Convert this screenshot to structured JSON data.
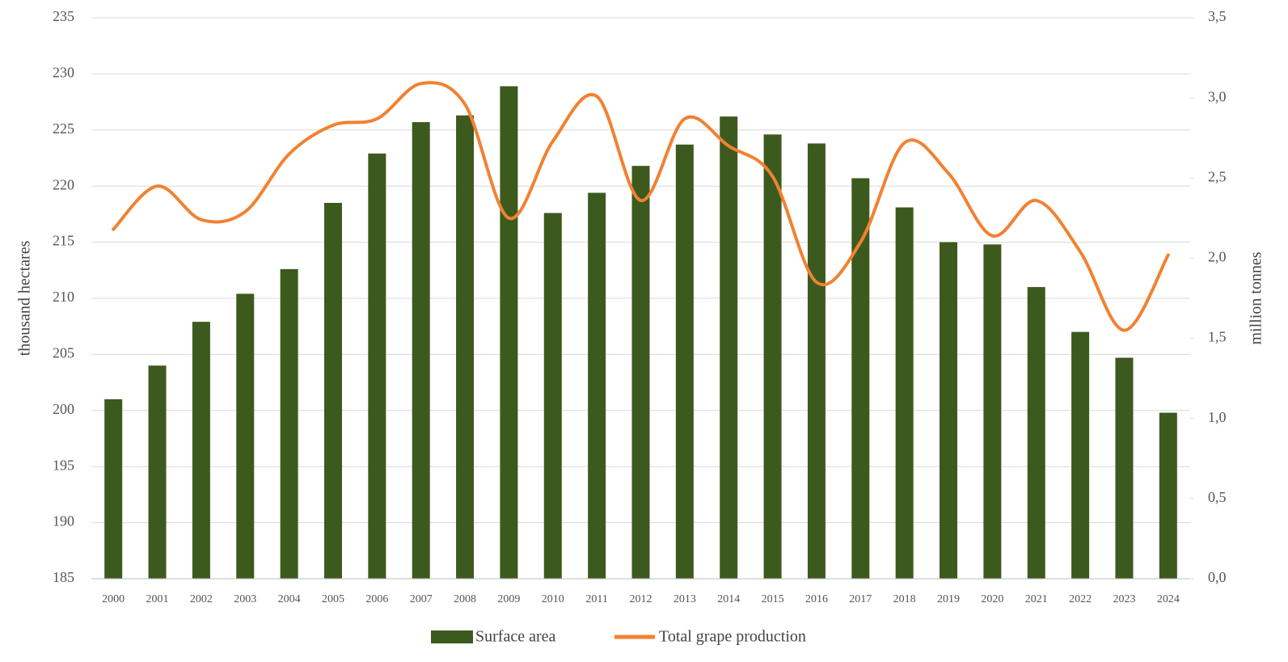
{
  "chart_data": {
    "type": "bar_line",
    "categories": [
      "2000",
      "2001",
      "2002",
      "2003",
      "2004",
      "2005",
      "2006",
      "2007",
      "2008",
      "2009",
      "2010",
      "2011",
      "2012",
      "2013",
      "2014",
      "2015",
      "2016",
      "2017",
      "2018",
      "2019",
      "2020",
      "2021",
      "2022",
      "2023",
      "2024"
    ],
    "series": [
      {
        "name": "Surface area",
        "type": "bar",
        "color": "#3d5a1e",
        "axis": "y",
        "values": [
          201.0,
          204.0,
          207.9,
          210.4,
          212.6,
          218.5,
          222.9,
          225.7,
          226.3,
          228.9,
          217.6,
          219.4,
          221.8,
          223.7,
          226.2,
          224.6,
          223.8,
          220.7,
          218.1,
          215.0,
          214.8,
          211.0,
          207.0,
          204.7,
          199.8
        ]
      },
      {
        "name": "Total grape production",
        "type": "line",
        "color": "#f08232",
        "axis": "y2",
        "values": [
          2.18,
          2.45,
          2.24,
          2.29,
          2.65,
          2.83,
          2.87,
          3.09,
          2.96,
          2.25,
          2.73,
          3.01,
          2.36,
          2.87,
          2.7,
          2.51,
          1.85,
          2.1,
          2.72,
          2.53,
          2.14,
          2.36,
          2.04,
          1.55,
          2.02
        ]
      }
    ],
    "ylabel": "thousand hectares",
    "y2label": "million tonnes",
    "ylim": [
      185,
      235
    ],
    "yticks": [
      185,
      190,
      195,
      200,
      205,
      210,
      215,
      220,
      225,
      230,
      235
    ],
    "y2lim": [
      0,
      3.5
    ],
    "y2ticks": [
      {
        "value": 0,
        "label": "0,0"
      },
      {
        "value": 0.5,
        "label": "0,5"
      },
      {
        "value": 1,
        "label": "1,0"
      },
      {
        "value": 1.5,
        "label": "1,5"
      },
      {
        "value": 2,
        "label": "2,0"
      },
      {
        "value": 2.5,
        "label": "2,5"
      },
      {
        "value": 3,
        "label": "3,0"
      },
      {
        "value": 3.5,
        "label": "3,5"
      }
    ],
    "grid": true,
    "legend": "bottom"
  }
}
